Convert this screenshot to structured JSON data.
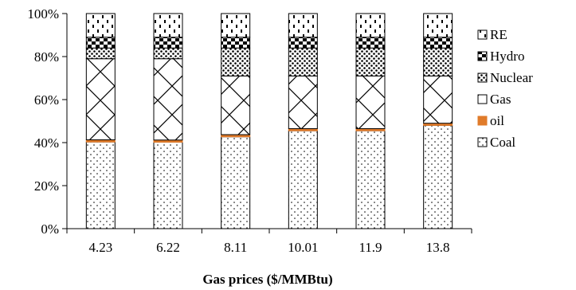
{
  "chart_data": {
    "type": "bar",
    "stacked": true,
    "normalized": true,
    "title": "",
    "xlabel": "Gas prices ($/MMBtu)",
    "ylabel": "",
    "ylim": [
      0,
      100
    ],
    "y_ticks": [
      "0%",
      "20%",
      "40%",
      "60%",
      "80%",
      "100%"
    ],
    "categories": [
      "4.23",
      "6.22",
      "8.11",
      "10.01",
      "11.9",
      "13.8"
    ],
    "series": [
      {
        "name": "Coal",
        "values": [
          40.3,
          40.2,
          42.7,
          45.5,
          45.5,
          48.0
        ],
        "pattern": "dots",
        "color": "#000000"
      },
      {
        "name": "oil",
        "values": [
          1.0,
          1.0,
          1.0,
          1.0,
          1.0,
          1.0
        ],
        "pattern": "solid",
        "color": "#E07B2A"
      },
      {
        "name": "Gas",
        "values": [
          37.7,
          37.8,
          27.3,
          24.5,
          24.5,
          22.0
        ],
        "pattern": "diag",
        "color": "#000000"
      },
      {
        "name": "Nuclear",
        "values": [
          5.0,
          5.0,
          13.0,
          13.0,
          13.0,
          13.0
        ],
        "pattern": "dense-dots",
        "color": "#000000"
      },
      {
        "name": "Hydro",
        "values": [
          5.0,
          5.0,
          5.0,
          5.0,
          5.0,
          5.0
        ],
        "pattern": "checker",
        "color": "#000000"
      },
      {
        "name": "RE",
        "values": [
          11.0,
          11.0,
          11.0,
          11.0,
          11.0,
          11.0
        ],
        "pattern": "dashes",
        "color": "#000000"
      }
    ],
    "legend_order": [
      "RE",
      "Hydro",
      "Nuclear",
      "Gas",
      "oil",
      "Coal"
    ],
    "legend_position": "right",
    "grid": false
  }
}
